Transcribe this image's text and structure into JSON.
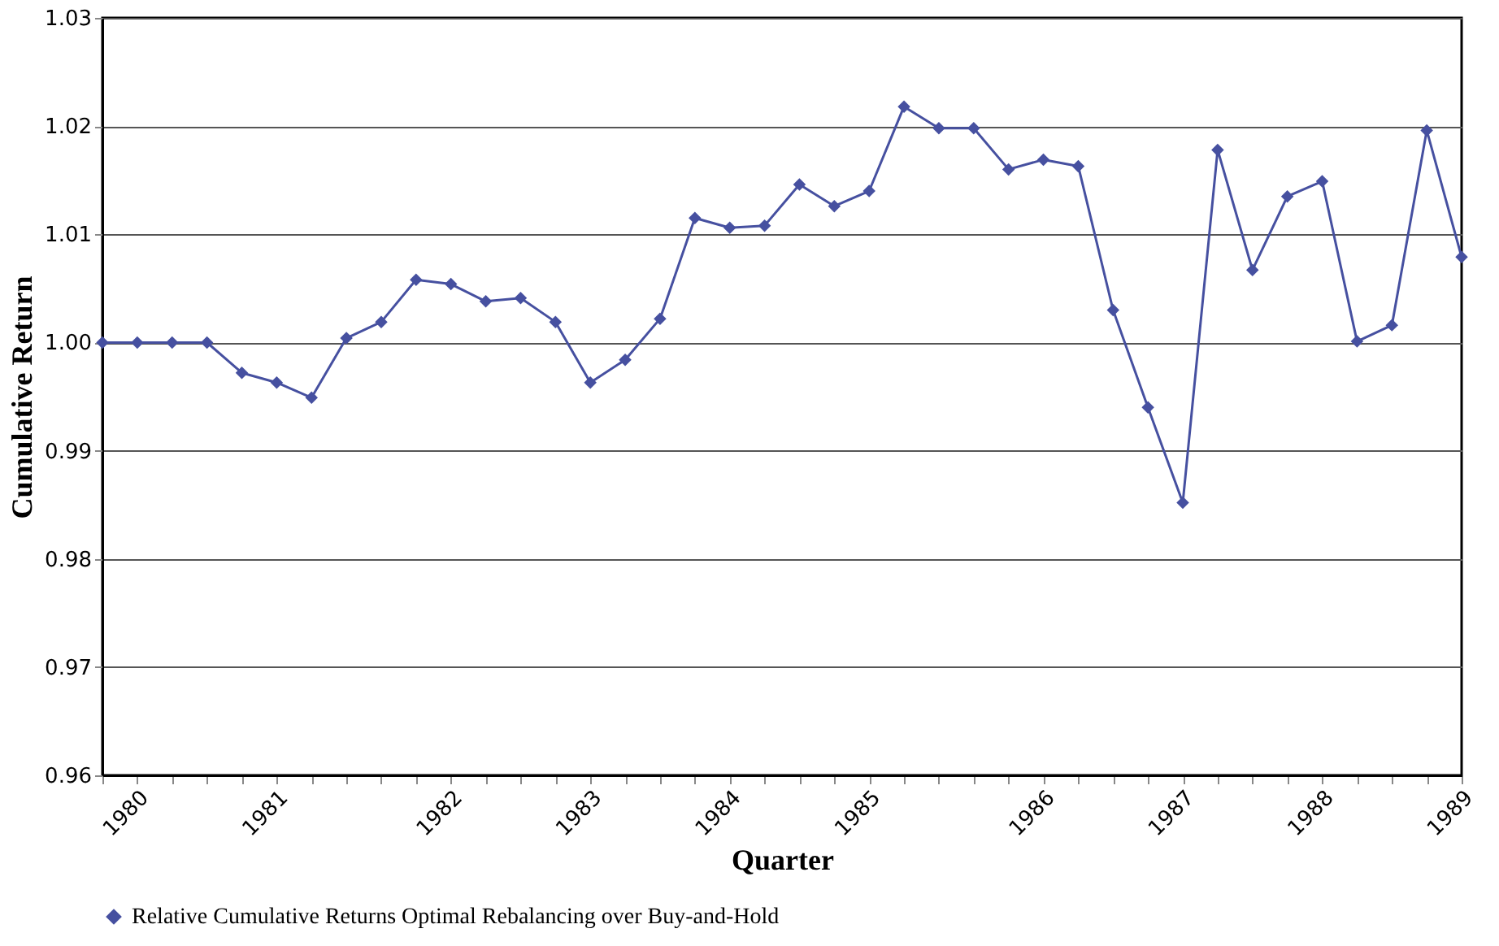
{
  "chart_data": {
    "type": "line",
    "xlabel": "Quarter",
    "ylabel": "Cumulative Return",
    "categories": [
      null,
      "1980",
      null,
      null,
      null,
      "1981",
      null,
      null,
      null,
      null,
      "1982",
      null,
      null,
      null,
      "1983",
      null,
      null,
      null,
      "1984",
      null,
      null,
      null,
      "1985",
      null,
      null,
      null,
      null,
      "1986",
      null,
      null,
      null,
      "1987",
      null,
      null,
      null,
      "1988",
      null,
      null,
      null,
      "1989"
    ],
    "series": [
      {
        "name": "Relative Cumulative Returns Optimal Rebalancing over Buy-and-Hold",
        "color": "#4650a0",
        "values": [
          1.0,
          1.0,
          1.0,
          1.0,
          0.9972,
          0.9963,
          0.9949,
          1.0004,
          1.0019,
          1.0058,
          1.0054,
          1.0038,
          1.0041,
          1.0019,
          0.9963,
          0.9984,
          1.0022,
          1.0115,
          1.0106,
          1.0108,
          1.0146,
          1.0126,
          1.014,
          1.0218,
          1.0198,
          1.0198,
          1.016,
          1.0169,
          1.0163,
          1.003,
          0.994,
          0.9852,
          1.0178,
          1.0067,
          1.0135,
          1.0149,
          1.0001,
          1.0016,
          1.0196,
          1.0079
        ]
      }
    ],
    "ylim": [
      0.96,
      1.03
    ],
    "yticks": [
      {
        "value": 0.96,
        "label": "0.96"
      },
      {
        "value": 0.97,
        "label": "0.97"
      },
      {
        "value": 0.98,
        "label": "0.98"
      },
      {
        "value": 0.99,
        "label": "0.99"
      },
      {
        "value": 1.0,
        "label": "1.00"
      },
      {
        "value": 1.01,
        "label": "1.01"
      },
      {
        "value": 1.02,
        "label": "1.02"
      },
      {
        "value": 1.03,
        "label": "1.03"
      }
    ],
    "grid": "y",
    "legend": "bottom",
    "marker": "diamond",
    "line_style": "solid"
  }
}
